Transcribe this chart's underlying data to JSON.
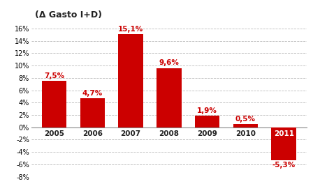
{
  "categories": [
    "2005",
    "2006",
    "2007",
    "2008",
    "2009",
    "2010",
    "2011"
  ],
  "values": [
    7.5,
    4.7,
    15.1,
    9.6,
    1.9,
    0.5,
    -5.3
  ],
  "labels": [
    "7,5%",
    "4,7%",
    "15,1%",
    "9,6%",
    "1,9%",
    "0,5%",
    "-5,3%"
  ],
  "bar_color": "#cc0000",
  "title": "(Δ Gasto I+D)",
  "ylim": [
    -8,
    17
  ],
  "yticks": [
    -8,
    -6,
    -4,
    -2,
    0,
    2,
    4,
    6,
    8,
    10,
    12,
    14,
    16
  ],
  "background_color": "#ffffff",
  "grid_color": "#bbbbbb",
  "label_color": "#cc0000",
  "label_color_neg": "#cc0000",
  "title_fontsize": 9,
  "tick_fontsize": 7,
  "label_fontsize": 7.5,
  "xtick_fontsize": 7.5
}
